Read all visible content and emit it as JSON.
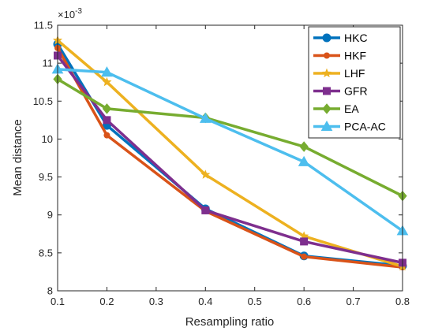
{
  "chart_data": {
    "type": "line",
    "xlabel": "Resampling ratio",
    "ylabel": "Mean distance",
    "exponent_label": "×10",
    "exponent_power": "-3",
    "x": [
      0.1,
      0.2,
      0.4,
      0.6,
      0.8
    ],
    "xlim": [
      0.1,
      0.8
    ],
    "ylim": [
      8,
      11.5
    ],
    "xticks": [
      0.1,
      0.2,
      0.3,
      0.4,
      0.5,
      0.6,
      0.7,
      0.8
    ],
    "xtick_labels": [
      "0.1",
      "0.2",
      "0.3",
      "0.4",
      "0.5",
      "0.6",
      "0.7",
      "0.8"
    ],
    "yticks": [
      8,
      8.5,
      9,
      9.5,
      10,
      10.5,
      11,
      11.5
    ],
    "ytick_labels": [
      "8",
      "8.5",
      "9",
      "9.5",
      "10",
      "10.5",
      "11",
      "11.5"
    ],
    "grid": false,
    "legend_position": "top-right",
    "series": [
      {
        "name": "HKC",
        "color": "#0072BD",
        "marker": "circle",
        "values": [
          11.25,
          10.18,
          9.08,
          8.46,
          8.33
        ]
      },
      {
        "name": "HKF",
        "color": "#D95319",
        "marker": "dot",
        "values": [
          11.2,
          10.05,
          9.05,
          8.45,
          8.31
        ]
      },
      {
        "name": "LHF",
        "color": "#EDB120",
        "marker": "star",
        "values": [
          11.3,
          10.75,
          9.53,
          8.72,
          8.32
        ]
      },
      {
        "name": "GFR",
        "color": "#7E2F8E",
        "marker": "square",
        "values": [
          11.1,
          10.25,
          9.06,
          8.65,
          8.37
        ]
      },
      {
        "name": "EA",
        "color": "#77AC30",
        "marker": "diamond",
        "values": [
          10.79,
          10.4,
          10.28,
          9.9,
          9.25
        ]
      },
      {
        "name": "PCA-AC",
        "color": "#4DBEEE",
        "marker": "triangle",
        "values": [
          10.92,
          10.88,
          10.27,
          9.7,
          8.79
        ]
      }
    ]
  }
}
